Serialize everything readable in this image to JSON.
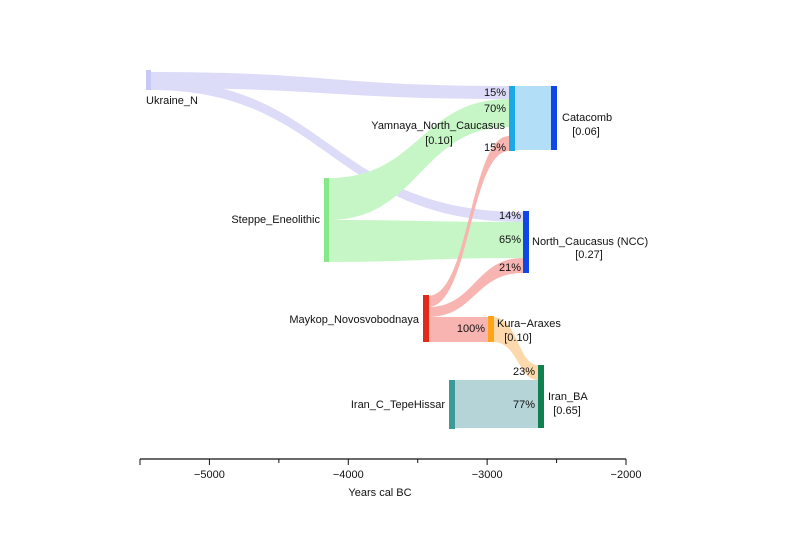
{
  "axis": {
    "title": "Years cal BC",
    "ticks": [
      {
        "value": -5000,
        "label": "−5000"
      },
      {
        "value": -4000,
        "label": "−4000"
      },
      {
        "value": -3000,
        "label": "−3000"
      },
      {
        "value": -2000,
        "label": "−2000"
      }
    ],
    "range": [
      -5500,
      -2000
    ]
  },
  "nodes": [
    {
      "id": "ukraine_n",
      "label": "Ukraine_N",
      "value": "",
      "color": "#c8c8f5"
    },
    {
      "id": "yamnaya_nc",
      "label": "Yamnaya_North_Caucasus",
      "value": "[0.10]",
      "color": "#1ba8e6"
    },
    {
      "id": "catacomb",
      "label": "Catacomb",
      "value": "[0.06]",
      "color": "#1146e6"
    },
    {
      "id": "steppe_eneolithic",
      "label": "Steppe_Eneolithic",
      "value": "",
      "color": "#86e886"
    },
    {
      "id": "north_caucasus",
      "label": "North_Caucasus (NCC)",
      "value": "[0.27]",
      "color": "#1146e6"
    },
    {
      "id": "maykop",
      "label": "Maykop_Novosvobodnaya",
      "value": "",
      "color": "#e02a1a"
    },
    {
      "id": "kura_araxes",
      "label": "Kura−Araxes",
      "value": "[0.10]",
      "color": "#ffa31a"
    },
    {
      "id": "iran_c",
      "label": "Iran_C_TepeHissar",
      "value": "",
      "color": "#3d9a98"
    },
    {
      "id": "iran_ba",
      "label": "Iran_BA",
      "value": "[0.65]",
      "color": "#108050"
    }
  ],
  "flows": [
    {
      "id": "ukraine_to_yamnaya",
      "pct": "15%",
      "color": "#d4d4f7"
    },
    {
      "id": "steppe_to_yamnaya",
      "pct": "70%",
      "color": "#b8f4b8"
    },
    {
      "id": "maykop_to_yamnaya",
      "pct": "15%",
      "color": "#f7a5a0"
    },
    {
      "id": "yamnaya_to_catacomb",
      "pct": "",
      "color": "#a6d9f7"
    },
    {
      "id": "ukraine_to_ncc",
      "pct": "14%",
      "color": "#d4d4f7"
    },
    {
      "id": "steppe_to_ncc",
      "pct": "65%",
      "color": "#b8f4b8"
    },
    {
      "id": "maykop_to_ncc",
      "pct": "21%",
      "color": "#f7a5a0"
    },
    {
      "id": "maykop_to_kura",
      "pct": "100%",
      "color": "#f7a5a0"
    },
    {
      "id": "kura_to_iranba",
      "pct": "23%",
      "color": "#fcd39a"
    },
    {
      "id": "iranc_to_iranba",
      "pct": "77%",
      "color": "#a8cdd0"
    }
  ]
}
